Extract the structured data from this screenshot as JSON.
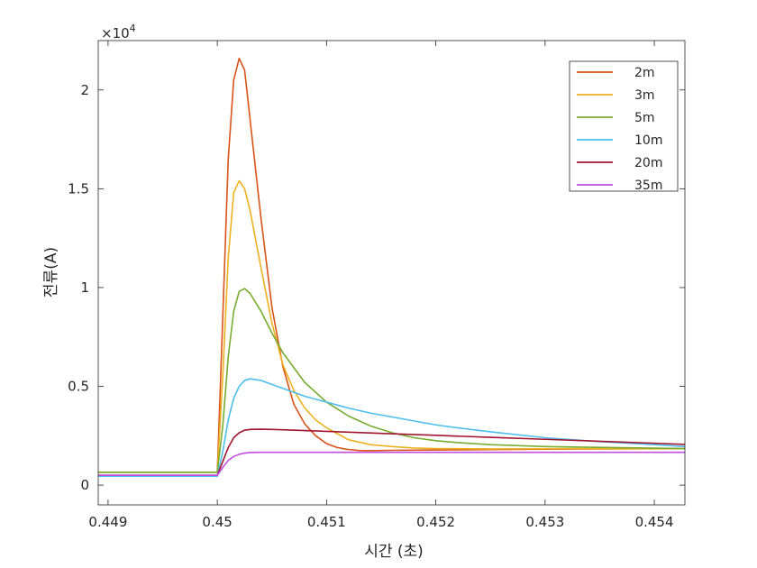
{
  "chart_data": {
    "type": "line",
    "title": "",
    "xlabel": "시간 (초)",
    "ylabel": "전류(A)",
    "exponent_label": "×10",
    "exponent_power": "4",
    "xlim": [
      0.44891,
      0.45428
    ],
    "ylim": [
      -1000,
      22500
    ],
    "x_ticks": [
      0.449,
      0.45,
      0.451,
      0.452,
      0.453,
      0.454
    ],
    "x_tick_labels": [
      "0.449",
      "0.45",
      "0.451",
      "0.452",
      "0.453",
      "0.454"
    ],
    "y_ticks": [
      0,
      5000,
      10000,
      15000,
      20000
    ],
    "y_tick_labels": [
      "0",
      "0.5",
      "1",
      "1.5",
      "2"
    ],
    "grid": false,
    "legend_position": "top-right",
    "series": [
      {
        "name": "2m",
        "color": "#D95319",
        "x": [
          0.44891,
          0.45,
          0.45005,
          0.4501,
          0.45015,
          0.4502,
          0.45025,
          0.4503,
          0.4504,
          0.4505,
          0.4506,
          0.4507,
          0.4508,
          0.4509,
          0.451,
          0.4511,
          0.4512,
          0.4513,
          0.4514,
          0.4515,
          0.4516,
          0.452,
          0.453,
          0.45428
        ],
        "y": [
          650,
          650,
          8500,
          16500,
          20500,
          21600,
          21000,
          18500,
          13500,
          9000,
          6000,
          4100,
          3100,
          2500,
          2100,
          1900,
          1800,
          1750,
          1740,
          1750,
          1760,
          1780,
          1820,
          1850
        ]
      },
      {
        "name": "3m",
        "color": "#EDB120",
        "x": [
          0.44891,
          0.45,
          0.45005,
          0.4501,
          0.45015,
          0.4502,
          0.45025,
          0.4503,
          0.4504,
          0.4505,
          0.4506,
          0.4507,
          0.4508,
          0.4509,
          0.451,
          0.4512,
          0.4514,
          0.4516,
          0.4518,
          0.452,
          0.4525,
          0.453,
          0.45428
        ],
        "y": [
          650,
          650,
          5500,
          11500,
          14800,
          15400,
          15000,
          13900,
          11000,
          8200,
          6100,
          4800,
          3900,
          3300,
          2900,
          2300,
          2050,
          1950,
          1880,
          1850,
          1830,
          1840,
          1850
        ]
      },
      {
        "name": "5m",
        "color": "#77AC30",
        "x": [
          0.44891,
          0.45,
          0.45005,
          0.4501,
          0.45015,
          0.4502,
          0.45025,
          0.4503,
          0.4504,
          0.4505,
          0.4506,
          0.4508,
          0.451,
          0.4512,
          0.4514,
          0.4516,
          0.4518,
          0.452,
          0.4522,
          0.4525,
          0.453,
          0.45428
        ],
        "y": [
          650,
          650,
          3000,
          6500,
          8800,
          9800,
          9950,
          9700,
          8800,
          7700,
          6700,
          5200,
          4200,
          3500,
          3000,
          2650,
          2400,
          2250,
          2150,
          2050,
          1950,
          1850
        ]
      },
      {
        "name": "10m",
        "color": "#4DBEEE",
        "x": [
          0.44891,
          0.45,
          0.45005,
          0.4501,
          0.45015,
          0.4502,
          0.45025,
          0.4503,
          0.4504,
          0.4505,
          0.4506,
          0.4508,
          0.451,
          0.4512,
          0.4514,
          0.4516,
          0.4518,
          0.452,
          0.4522,
          0.4525,
          0.453,
          0.4535,
          0.454,
          0.45428
        ],
        "y": [
          450,
          450,
          1700,
          3300,
          4400,
          5000,
          5300,
          5380,
          5300,
          5100,
          4900,
          4500,
          4200,
          3900,
          3650,
          3450,
          3250,
          3050,
          2900,
          2700,
          2400,
          2200,
          2050,
          1950
        ]
      },
      {
        "name": "20m",
        "color": "#A2142F",
        "x": [
          0.44891,
          0.45,
          0.45005,
          0.4501,
          0.45015,
          0.4502,
          0.45025,
          0.4503,
          0.4504,
          0.4505,
          0.4506,
          0.4508,
          0.451,
          0.4512,
          0.4515,
          0.452,
          0.4525,
          0.453,
          0.4535,
          0.454,
          0.45428
        ],
        "y": [
          500,
          500,
          1200,
          1900,
          2400,
          2650,
          2780,
          2820,
          2830,
          2820,
          2800,
          2760,
          2720,
          2680,
          2620,
          2520,
          2420,
          2320,
          2220,
          2120,
          2060
        ]
      },
      {
        "name": "35m",
        "color": "#C04DE3",
        "x": [
          0.44891,
          0.45,
          0.45005,
          0.4501,
          0.45015,
          0.4502,
          0.45025,
          0.4503,
          0.4504,
          0.4505,
          0.451,
          0.452,
          0.453,
          0.45428
        ],
        "y": [
          500,
          500,
          900,
          1250,
          1450,
          1560,
          1620,
          1650,
          1660,
          1660,
          1660,
          1660,
          1660,
          1660
        ]
      }
    ]
  }
}
